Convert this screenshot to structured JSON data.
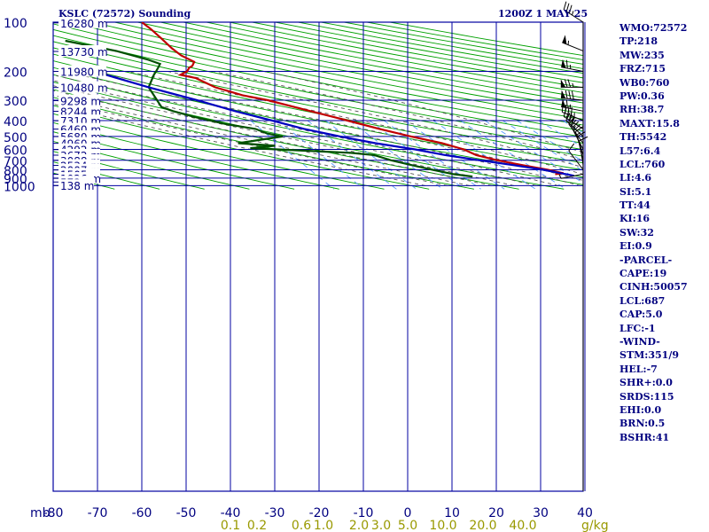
{
  "header": {
    "station": "KSLC (72572) Sounding",
    "time": "1200Z  1 MAY 25"
  },
  "parameters": [
    "WMO:72572",
    "TP:218",
    "MW:235",
    "FRZ:715",
    "WB0:760",
    "PW:0.36",
    "RH:38.7",
    "MAXT:15.8",
    "TH:5542",
    "L57:6.4",
    "LCL:760",
    "LI:4.6",
    "SI:5.1",
    "TT:44",
    "KI:16",
    "SW:32",
    "EI:0.9",
    "-PARCEL-",
    "CAPE:19",
    "CINH:50057",
    "LCL:687",
    "CAP:5.0",
    "LFC:-1",
    "-WIND-",
    "STM:351/9",
    "HEL:-7",
    "SHR+:0.0",
    "SRDS:115",
    "EHI:0.0",
    "BRN:0.5",
    "BSHR:41"
  ],
  "colors": {
    "background": "#ffffff",
    "grid": "#0000a0",
    "text": "#000080",
    "temperature": "#c00000",
    "dewpoint": "#005000",
    "parcel": "#0000c0",
    "dry_adiabats": "#00a000",
    "moist_adiabats": "#555555",
    "mixing_ratio": "#5599ff",
    "mixing_ratio_labels": "#999900",
    "wind": "#000000"
  },
  "chart_data": {
    "type": "line",
    "title": "KSLC (72572) Sounding",
    "xlabel": "",
    "ylabel": "mb",
    "x_unit_label": "g/kg",
    "pressure_ticks": [
      100,
      200,
      300,
      400,
      500,
      600,
      700,
      800,
      900,
      1000
    ],
    "temperature_ticks": [
      -80,
      -70,
      -60,
      -50,
      -40,
      -30,
      -20,
      -10,
      0,
      10,
      20,
      30,
      40
    ],
    "height_labels": [
      {
        "p": 101,
        "label": "16280 m"
      },
      {
        "p": 151,
        "label": "13730 m"
      },
      {
        "p": 200,
        "label": "11980 m"
      },
      {
        "p": 251,
        "label": "10480 m"
      },
      {
        "p": 302,
        "label": "9298 m"
      },
      {
        "p": 351,
        "label": "8244 m"
      },
      {
        "p": 401,
        "label": "7310 m"
      },
      {
        "p": 451,
        "label": "6460 m"
      },
      {
        "p": 501,
        "label": "5680 m"
      },
      {
        "p": 551,
        "label": "4960 m"
      },
      {
        "p": 602,
        "label": "4292 m"
      },
      {
        "p": 651,
        "label": "3672 m"
      },
      {
        "p": 701,
        "label": "3088 m"
      },
      {
        "p": 752,
        "label": "2534 m"
      },
      {
        "p": 802,
        "label": "2007 m"
      },
      {
        "p": 852,
        "label": "1505 m"
      },
      {
        "p": 902,
        "label": "1026 m"
      },
      {
        "p": 950,
        "label": "573 m"
      },
      {
        "p": 998,
        "label": "138 m"
      }
    ],
    "mixing_ratio_labels": [
      {
        "w": "0.1",
        "x": -40
      },
      {
        "w": "0.2",
        "x": -34
      },
      {
        "w": "0.6",
        "x": -24
      },
      {
        "w": "1.0",
        "x": -19
      },
      {
        "w": "2.0",
        "x": -11
      },
      {
        "w": "3.0",
        "x": -6
      },
      {
        "w": "5.0",
        "x": 0
      },
      {
        "w": "10.0",
        "x": 8
      },
      {
        "w": "20.0",
        "x": 17
      },
      {
        "w": "40.0",
        "x": 26
      }
    ],
    "series": [
      {
        "key": "temperature",
        "points": [
          [
            100,
            -60
          ],
          [
            110,
            -59
          ],
          [
            125,
            -58
          ],
          [
            145,
            -57
          ],
          [
            160,
            -56
          ],
          [
            175,
            -54
          ],
          [
            185,
            -55
          ],
          [
            190,
            -56
          ],
          [
            200,
            -57
          ],
          [
            210,
            -59
          ],
          [
            220,
            -56
          ],
          [
            250,
            -53
          ],
          [
            280,
            -48
          ],
          [
            300,
            -43
          ],
          [
            350,
            -35
          ],
          [
            400,
            -28
          ],
          [
            450,
            -22
          ],
          [
            500,
            -16
          ],
          [
            550,
            -10
          ],
          [
            600,
            -6
          ],
          [
            650,
            -4
          ],
          [
            700,
            0
          ],
          [
            750,
            5
          ],
          [
            800,
            10
          ],
          [
            840,
            13
          ],
          [
            850,
            11
          ]
        ]
      },
      {
        "key": "dewpoint",
        "points": [
          [
            130,
            -80
          ],
          [
            150,
            -70
          ],
          [
            170,
            -64
          ],
          [
            180,
            -62
          ],
          [
            190,
            -63
          ],
          [
            200,
            -64
          ],
          [
            210,
            -65
          ],
          [
            250,
            -68
          ],
          [
            300,
            -68
          ],
          [
            330,
            -68
          ],
          [
            350,
            -66
          ],
          [
            380,
            -62
          ],
          [
            420,
            -56
          ],
          [
            450,
            -50
          ],
          [
            480,
            -48
          ],
          [
            500,
            -45
          ],
          [
            550,
            -56
          ],
          [
            570,
            -48
          ],
          [
            590,
            -54
          ],
          [
            600,
            -48
          ],
          [
            630,
            -32
          ],
          [
            650,
            -27
          ],
          [
            700,
            -24
          ],
          [
            750,
            -20
          ],
          [
            800,
            -16
          ],
          [
            850,
            -12
          ],
          [
            880,
            -8
          ]
        ]
      },
      {
        "key": "parcel",
        "points": [
          [
            200,
            -78
          ],
          [
            250,
            -68
          ],
          [
            300,
            -59
          ],
          [
            350,
            -52
          ],
          [
            400,
            -45
          ],
          [
            450,
            -39
          ],
          [
            500,
            -32
          ],
          [
            550,
            -25
          ],
          [
            600,
            -17
          ],
          [
            650,
            -11
          ],
          [
            700,
            -4
          ],
          [
            750,
            3
          ],
          [
            800,
            9
          ],
          [
            870,
            15
          ]
        ]
      }
    ],
    "winds": [
      {
        "p": 100,
        "dir": 300,
        "spd": 35
      },
      {
        "p": 150,
        "dir": 290,
        "spd": 55
      },
      {
        "p": 200,
        "dir": 280,
        "spd": 65
      },
      {
        "p": 250,
        "dir": 270,
        "spd": 75
      },
      {
        "p": 300,
        "dir": 275,
        "spd": 80
      },
      {
        "p": 350,
        "dir": 280,
        "spd": 65
      },
      {
        "p": 400,
        "dir": 290,
        "spd": 45
      },
      {
        "p": 450,
        "dir": 300,
        "spd": 35
      },
      {
        "p": 500,
        "dir": 310,
        "spd": 30
      },
      {
        "p": 550,
        "dir": 320,
        "spd": 25
      },
      {
        "p": 600,
        "dir": 330,
        "spd": 20
      },
      {
        "p": 650,
        "dir": 340,
        "spd": 15
      },
      {
        "p": 700,
        "dir": 345,
        "spd": 10
      },
      {
        "p": 750,
        "dir": 350,
        "spd": 10
      },
      {
        "p": 800,
        "dir": 320,
        "spd": 10
      },
      {
        "p": 850,
        "dir": 260,
        "spd": 5
      }
    ]
  }
}
